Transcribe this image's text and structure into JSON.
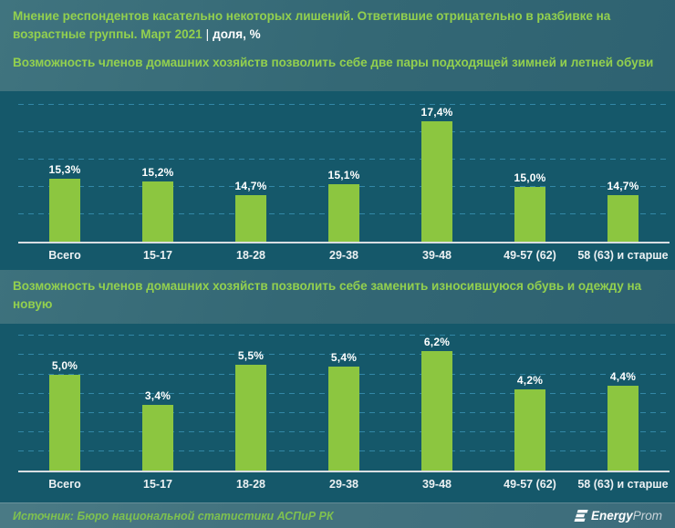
{
  "header": {
    "title": "Мнение респондентов касательно некоторых лишений. Ответившие отрицательно в разбивке на возрастные группы. Март 2021",
    "separator": "|",
    "unit": "доля, %"
  },
  "chart_data": [
    {
      "type": "bar",
      "subtitle": "Возможность членов домашних хозяйств позволить себе две пары подходящей зимней и летней обуви",
      "categories": [
        "Всего",
        "15-17",
        "18-28",
        "29-38",
        "39-48",
        "49-57 (62)",
        "58 (63) и старше"
      ],
      "values": [
        15.3,
        15.2,
        14.7,
        15.1,
        17.4,
        15.0,
        14.7
      ],
      "labels": [
        "15,3%",
        "15,2%",
        "14,7%",
        "15,1%",
        "17,4%",
        "15,0%",
        "14,7%"
      ],
      "ylabel": "доля, %",
      "axis": {
        "ymin": 13,
        "ymax": 18.5,
        "grid_step": 1,
        "grid_values": [
          14,
          15,
          16,
          17,
          18
        ]
      },
      "grid": "dashed horizontal",
      "legend": "none"
    },
    {
      "type": "bar",
      "subtitle": "Возможность членов домашних хозяйств позволить себе заменить износившуюся обувь и одежду на новую",
      "categories": [
        "Всего",
        "15-17",
        "18-28",
        "29-38",
        "39-48",
        "49-57 (62)",
        "58 (63) и старше"
      ],
      "values": [
        5.0,
        3.4,
        5.5,
        5.4,
        6.2,
        4.2,
        4.4
      ],
      "labels": [
        "5,0%",
        "3,4%",
        "5,5%",
        "5,4%",
        "6,2%",
        "4,2%",
        "4,4%"
      ],
      "ylabel": "доля, %",
      "axis": {
        "ymin": 0,
        "ymax": 7.63,
        "grid_step": 1,
        "grid_values": [
          1,
          2,
          3,
          4,
          5,
          6,
          7
        ]
      },
      "grid": "dashed horizontal",
      "legend": "none"
    }
  ],
  "footer": {
    "source": "Источник: Бюро национальной статистики АСПиР РК",
    "logo_bold": "Energy",
    "logo_light": "Prom"
  },
  "colors": {
    "bar": "#8cc640",
    "title_green": "#93d04e",
    "plot_background": "#15586a",
    "page_background": "#346875",
    "gridline": "#3287a6",
    "axis_line": "#d9dee2",
    "value_label": "#ffffff",
    "source_green": "#7fc14f"
  }
}
